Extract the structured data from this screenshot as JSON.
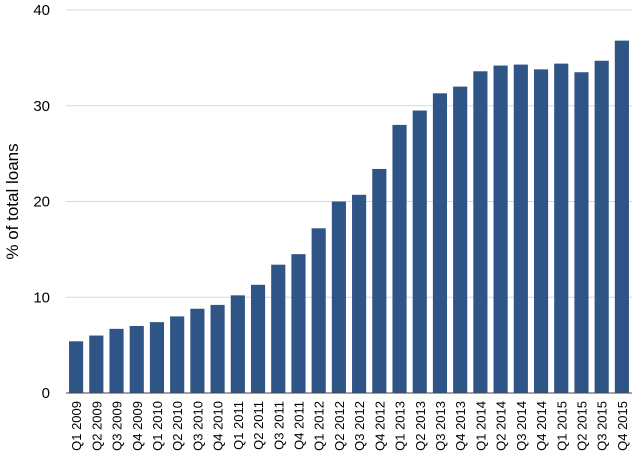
{
  "chart_data": {
    "type": "bar",
    "title": "",
    "xlabel": "",
    "ylabel": "% of total loans",
    "ylim": [
      0,
      40
    ],
    "yticks": [
      0,
      10,
      20,
      30,
      40
    ],
    "grid": true,
    "bar_color": "#2f5587",
    "categories": [
      "Q1 2009",
      "Q2 2009",
      "Q3 2009",
      "Q4 2009",
      "Q1 2010",
      "Q2 2010",
      "Q3 2010",
      "Q4 2010",
      "Q1 2011",
      "Q2 2011",
      "Q3 2011",
      "Q4 2011",
      "Q1 2012",
      "Q2 2012",
      "Q3 2012",
      "Q4 2012",
      "Q1 2013",
      "Q2 2013",
      "Q3 2013",
      "Q4 2013",
      "Q1 2014",
      "Q2 2014",
      "Q3 2014",
      "Q4 2014",
      "Q1 2015",
      "Q2 2015",
      "Q3 2015",
      "Q4 2015"
    ],
    "values": [
      5.4,
      6.0,
      6.7,
      7.0,
      7.4,
      8.0,
      8.8,
      9.2,
      10.2,
      11.3,
      13.4,
      14.5,
      17.2,
      20.0,
      20.7,
      23.4,
      28.0,
      29.5,
      31.3,
      32.0,
      33.6,
      34.2,
      34.3,
      33.8,
      34.4,
      33.5,
      34.7,
      36.8
    ]
  }
}
